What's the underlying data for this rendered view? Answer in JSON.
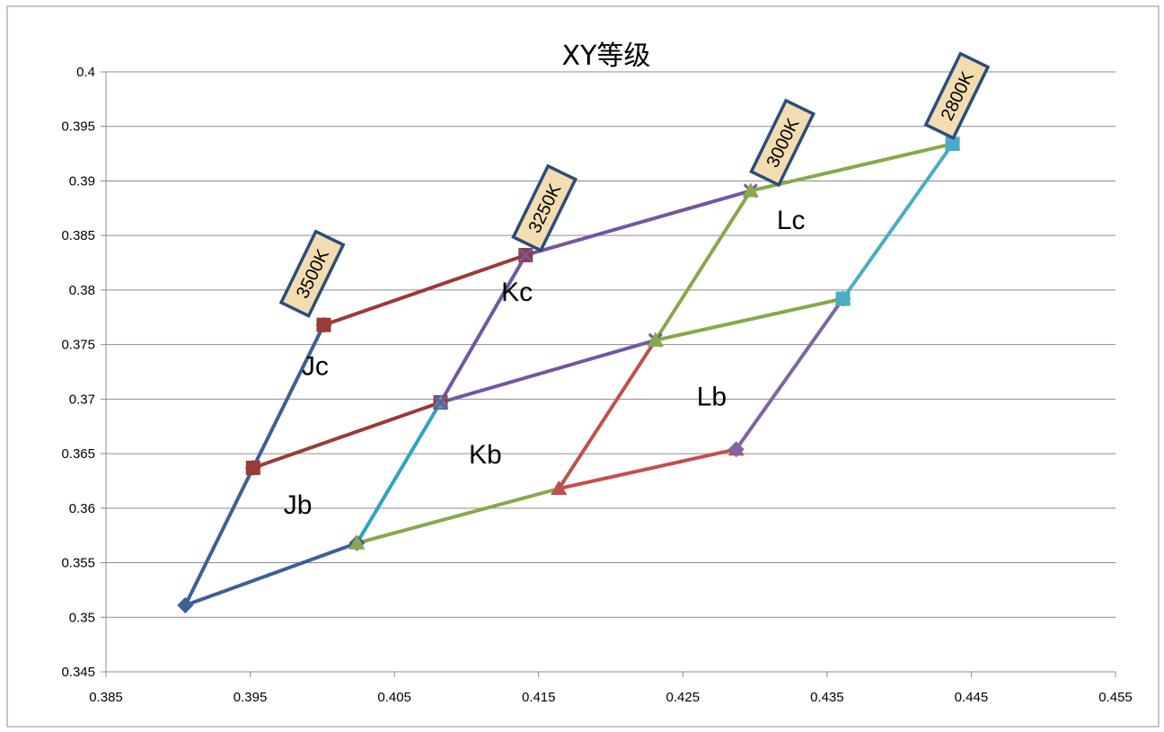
{
  "chart_data": {
    "type": "line",
    "title": "XY等级",
    "xlabel": "",
    "ylabel": "",
    "xlim": [
      0.385,
      0.455
    ],
    "ylim": [
      0.345,
      0.4
    ],
    "xticks": [
      0.385,
      0.395,
      0.405,
      0.415,
      0.425,
      0.435,
      0.445,
      0.455
    ],
    "xtick_labels": [
      "0.385",
      "0.395",
      "0.405",
      "0.415",
      "0.425",
      "0.435",
      "0.445",
      "0.455"
    ],
    "yticks": [
      0.345,
      0.35,
      0.355,
      0.36,
      0.365,
      0.37,
      0.375,
      0.38,
      0.385,
      0.39,
      0.395,
      0.4
    ],
    "ytick_labels": [
      "0.345",
      "0.35",
      "0.355",
      "0.36",
      "0.365",
      "0.37",
      "0.375",
      "0.38",
      "0.385",
      "0.39",
      "0.395",
      "0.4"
    ],
    "grid": true,
    "legend": false,
    "series": [
      {
        "color": "#3d5f95",
        "marker": "diamond",
        "points": [
          [
            0.3905,
            0.3511
          ],
          [
            0.3952,
            0.3637
          ],
          [
            0.4001,
            0.3768
          ]
        ]
      },
      {
        "color": "#3d5f95",
        "marker": "diamond",
        "points": [
          [
            0.3905,
            0.3511
          ],
          [
            0.4024,
            0.3568
          ]
        ]
      },
      {
        "color": "#9b3a38",
        "marker": "square",
        "points": [
          [
            0.3952,
            0.3637
          ],
          [
            0.4082,
            0.3697
          ]
        ]
      },
      {
        "color": "#9b3a38",
        "marker": "square",
        "points": [
          [
            0.4001,
            0.3768
          ],
          [
            0.4141,
            0.3832
          ]
        ]
      },
      {
        "color": "#2da3c4",
        "marker": "triangle",
        "points": [
          [
            0.4024,
            0.3568
          ],
          [
            0.4082,
            0.3697
          ]
        ]
      },
      {
        "color": "#7257a0",
        "marker": "cross",
        "points": [
          [
            0.4082,
            0.3697
          ],
          [
            0.4141,
            0.3832
          ]
        ]
      },
      {
        "color": "#7257a0",
        "marker": "cross",
        "points": [
          [
            0.4082,
            0.3697
          ],
          [
            0.4231,
            0.3754
          ]
        ]
      },
      {
        "color": "#7257a0",
        "marker": "cross",
        "points": [
          [
            0.4141,
            0.3832
          ],
          [
            0.4297,
            0.3891
          ]
        ]
      },
      {
        "color": "#87a84b",
        "marker": "triangle",
        "points": [
          [
            0.4024,
            0.3568
          ],
          [
            0.4164,
            0.3618
          ]
        ]
      },
      {
        "color": "#c0504d",
        "marker": "triangle",
        "points": [
          [
            0.4164,
            0.3618
          ],
          [
            0.4231,
            0.3754
          ]
        ]
      },
      {
        "color": "#c0504d",
        "marker": "triangle",
        "points": [
          [
            0.4164,
            0.3618
          ],
          [
            0.4287,
            0.3654
          ]
        ]
      },
      {
        "color": "#87a84b",
        "marker": "triangle",
        "points": [
          [
            0.4231,
            0.3754
          ],
          [
            0.4297,
            0.3891
          ]
        ]
      },
      {
        "color": "#87a84b",
        "marker": "triangle",
        "points": [
          [
            0.4231,
            0.3754
          ],
          [
            0.4361,
            0.3792
          ]
        ]
      },
      {
        "color": "#87a84b",
        "marker": "triangle",
        "points": [
          [
            0.4297,
            0.3891
          ],
          [
            0.4437,
            0.3934
          ]
        ]
      },
      {
        "color": "#8064a2",
        "marker": "diamond",
        "points": [
          [
            0.4287,
            0.3654
          ],
          [
            0.4361,
            0.3792
          ]
        ]
      },
      {
        "color": "#4bacc6",
        "marker": "square",
        "points": [
          [
            0.4361,
            0.3792
          ],
          [
            0.4437,
            0.3934
          ]
        ]
      }
    ],
    "region_labels": [
      {
        "text": "Jc",
        "x": 0.3995,
        "y": 0.3722
      },
      {
        "text": "Kc",
        "x": 0.4135,
        "y": 0.379
      },
      {
        "text": "Lc",
        "x": 0.4325,
        "y": 0.3856
      },
      {
        "text": "Jb",
        "x": 0.3983,
        "y": 0.3595
      },
      {
        "text": "Kb",
        "x": 0.4113,
        "y": 0.3641
      },
      {
        "text": "Lb",
        "x": 0.427,
        "y": 0.3694
      }
    ],
    "cct_labels": [
      {
        "text": "3500K",
        "x": 0.3993,
        "y": 0.3815
      },
      {
        "text": "3250K",
        "x": 0.4154,
        "y": 0.3875
      },
      {
        "text": "3000K",
        "x": 0.4319,
        "y": 0.3935
      },
      {
        "text": "2800K",
        "x": 0.444,
        "y": 0.3978
      }
    ]
  }
}
